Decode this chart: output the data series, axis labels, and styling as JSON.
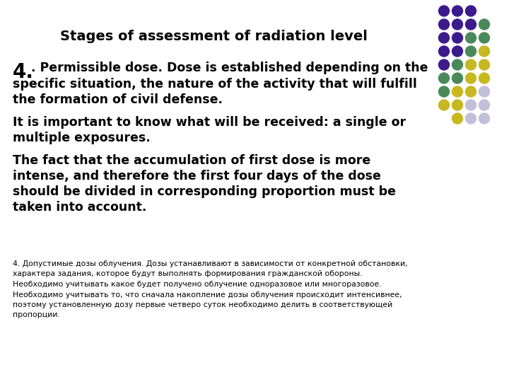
{
  "title": "Stages of assessment of radiation level",
  "background_color": "#ffffff",
  "dot_grid_colors": [
    [
      "#3d1a8c",
      "#3d1a8c",
      "#3d1a8c",
      null
    ],
    [
      "#3d1a8c",
      "#3d1a8c",
      "#3d1a8c",
      "#4a8a5a"
    ],
    [
      "#3d1a8c",
      "#3d1a8c",
      "#4a8a5a",
      "#4a8a5a"
    ],
    [
      "#3d1a8c",
      "#3d1a8c",
      "#4a8a5a",
      "#c8b820"
    ],
    [
      "#3d1a8c",
      "#4a8a5a",
      "#c8b820",
      "#c8b820"
    ],
    [
      "#4a8a5a",
      "#4a8a5a",
      "#c8b820",
      "#c8b820"
    ],
    [
      "#4a8a5a",
      "#c8b820",
      "#c8b820",
      "#c0c0d8"
    ],
    [
      "#c8b820",
      "#c8b820",
      "#c0c0d8",
      "#c0c0d8"
    ],
    [
      null,
      "#c8b820",
      "#c0c0d8",
      "#c0c0d8"
    ]
  ],
  "main_bold_lines": [
    {
      "text": "Permissible dose. Dose is established depending on the",
      "prefix": "4.",
      "prefix_large": true
    },
    {
      "text": "specific situation, the nature of the activity that will fulfill",
      "prefix": "",
      "prefix_large": false
    },
    {
      "text": "the formation of civil defense.",
      "prefix": "",
      "prefix_large": false
    },
    {
      "text": "",
      "prefix": "",
      "prefix_large": false
    },
    {
      "text": "It is important to know what will be received: a single or",
      "prefix": "",
      "prefix_large": false
    },
    {
      "text": "multiple exposures.",
      "prefix": "",
      "prefix_large": false
    },
    {
      "text": "",
      "prefix": "",
      "prefix_large": false
    },
    {
      "text": "The fact that the accumulation of first dose is more",
      "prefix": "",
      "prefix_large": false
    },
    {
      "text": "intense, and therefore the first four days of the dose",
      "prefix": "",
      "prefix_large": false
    },
    {
      "text": "should be divided in corresponding proportion must be",
      "prefix": "",
      "prefix_large": false
    },
    {
      "text": "taken into account.",
      "prefix": "",
      "prefix_large": false
    }
  ],
  "small_text": "4. Допустимые дозы облучения. Дозы устанавливают в зависимости от конкретной обстановки,\nхарактера задания, которое будут выполнять формирования гражданской обороны.\nНеобходимо учитывать какое будет получено облучение одноразовое или многоразовое.\nНеобходимо учитывать то, что сначала накопление дозы облучения происходит интенсивнее,\nпоэтому установленную дозу первые четверо суток необходимо делить в соответствующей\nпропорции.",
  "fig_width": 7.2,
  "fig_height": 5.4,
  "dpi": 100
}
